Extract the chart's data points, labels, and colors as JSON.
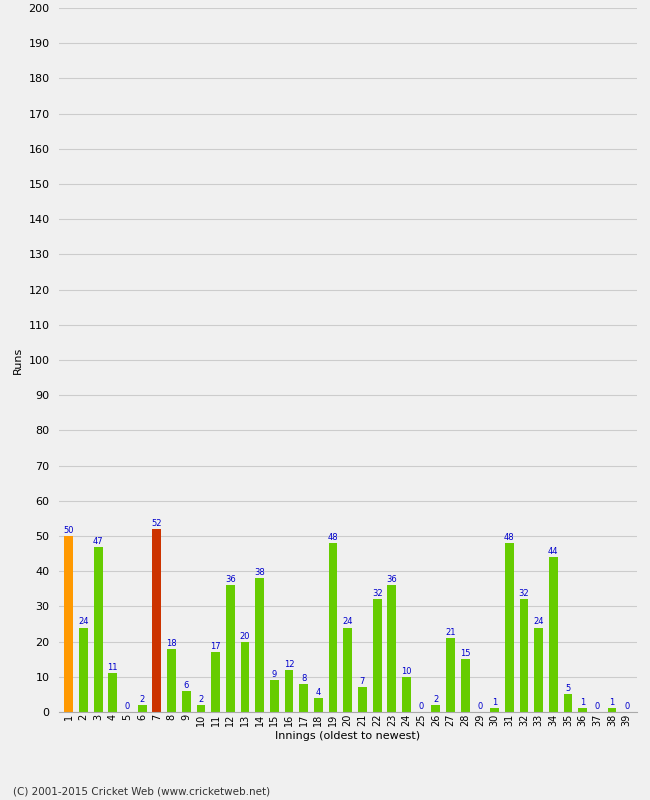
{
  "innings": [
    1,
    2,
    3,
    4,
    5,
    6,
    7,
    8,
    9,
    10,
    11,
    12,
    13,
    14,
    15,
    16,
    17,
    18,
    19,
    20,
    21,
    22,
    23,
    24,
    25,
    26,
    27,
    28,
    29,
    30,
    31,
    32,
    33,
    34,
    35,
    36,
    37,
    38,
    39
  ],
  "values": [
    50,
    24,
    47,
    11,
    0,
    2,
    52,
    18,
    6,
    2,
    17,
    36,
    20,
    38,
    9,
    12,
    8,
    4,
    48,
    24,
    7,
    32,
    36,
    10,
    0,
    2,
    21,
    15,
    0,
    1,
    48,
    32,
    24,
    44,
    5,
    1,
    0,
    1,
    0
  ],
  "colors": [
    "#ff9900",
    "#66cc00",
    "#66cc00",
    "#66cc00",
    "#66cc00",
    "#66cc00",
    "#cc3300",
    "#66cc00",
    "#66cc00",
    "#66cc00",
    "#66cc00",
    "#66cc00",
    "#66cc00",
    "#66cc00",
    "#66cc00",
    "#66cc00",
    "#66cc00",
    "#66cc00",
    "#66cc00",
    "#66cc00",
    "#66cc00",
    "#66cc00",
    "#66cc00",
    "#66cc00",
    "#66cc00",
    "#66cc00",
    "#66cc00",
    "#66cc00",
    "#66cc00",
    "#66cc00",
    "#66cc00",
    "#66cc00",
    "#66cc00",
    "#66cc00",
    "#66cc00",
    "#66cc00",
    "#66cc00",
    "#66cc00",
    "#66cc00"
  ],
  "xlabel": "Innings (oldest to newest)",
  "ylabel": "Runs",
  "ylim": [
    0,
    200
  ],
  "yticks": [
    0,
    10,
    20,
    30,
    40,
    50,
    60,
    70,
    80,
    90,
    100,
    110,
    120,
    130,
    140,
    150,
    160,
    170,
    180,
    190,
    200
  ],
  "footer": "(C) 2001-2015 Cricket Web (www.cricketweb.net)",
  "label_color": "#0000cc",
  "background_color": "#f0f0f0",
  "plot_bg_color": "#f0f0f0",
  "grid_color": "#cccccc"
}
